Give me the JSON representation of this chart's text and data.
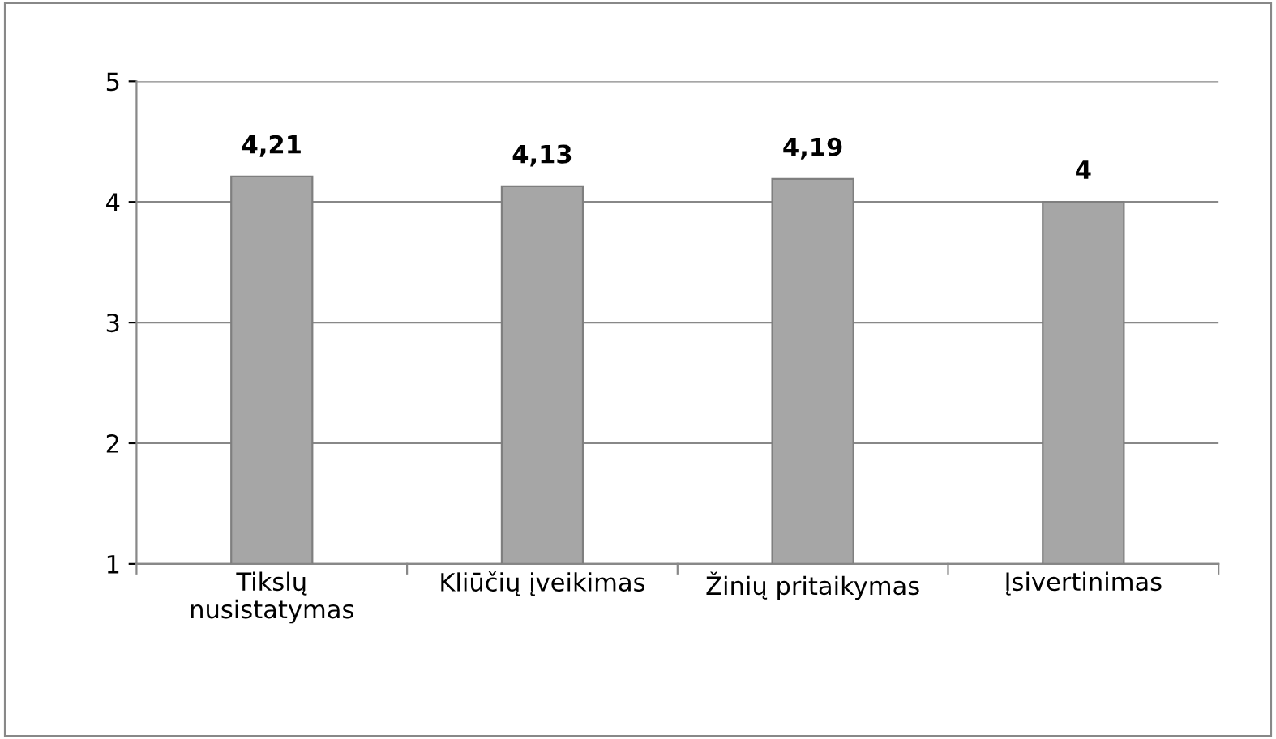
{
  "chart_data": {
    "type": "bar",
    "categories": [
      "Tikslų\nnusistatymas",
      "Kliūčių įveikimas",
      "Žinių pritaikymas",
      "Įsivertinimas"
    ],
    "values": [
      4.21,
      4.13,
      4.19,
      4
    ],
    "value_labels": [
      "4,21",
      "4,13",
      "4,19",
      "4"
    ],
    "color": "#a6a6a6",
    "ylim": [
      1,
      5
    ],
    "yticks": [
      1,
      2,
      3,
      4,
      5
    ],
    "grid": "y"
  }
}
